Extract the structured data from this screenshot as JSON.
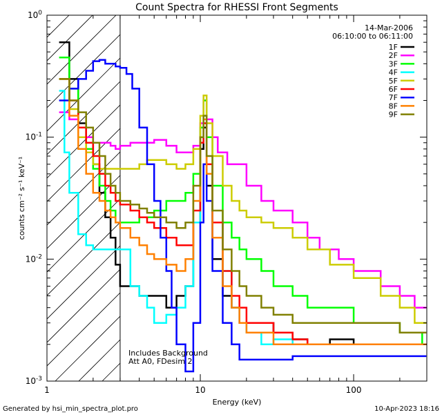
{
  "chart_data": {
    "type": "line",
    "title": "Count Spectra for RHESSI Front Segments",
    "xlabel": "Energy (keV)",
    "ylabel": "counts cm⁻² s⁻¹ keV⁻¹",
    "xscale": "log",
    "yscale": "log",
    "xlim": [
      1,
      300
    ],
    "ylim": [
      0.001,
      1
    ],
    "x_ticks": [
      {
        "value": 1,
        "label": "1"
      },
      {
        "value": 10,
        "label": "10"
      },
      {
        "value": 100,
        "label": "100"
      }
    ],
    "y_ticks": [
      {
        "value": 1,
        "base": "10",
        "exp": "0"
      },
      {
        "value": 0.1,
        "base": "10",
        "exp": "-1"
      },
      {
        "value": 0.01,
        "base": "10",
        "exp": "-2"
      },
      {
        "value": 0.001,
        "base": "10",
        "exp": "-3"
      }
    ],
    "date": "14-Mar-2006",
    "time_range": "06:10:00 to 06:11:00",
    "shaded_region": {
      "from_keV": 1,
      "to_keV": 3
    },
    "annotations": [
      "Includes Background",
      "Att A0, FDesim 2"
    ],
    "legend_position": "top-right",
    "series": [
      {
        "name": "1F",
        "color": "#000000",
        "x": [
          1.2,
          1.4,
          1.6,
          1.8,
          2.0,
          2.2,
          2.4,
          2.6,
          2.8,
          3.0,
          4,
          5,
          6,
          7,
          8,
          9,
          10,
          10.5,
          11,
          12,
          14,
          16,
          18,
          20,
          25,
          30,
          40,
          50,
          70,
          100,
          150,
          200,
          280
        ],
        "y": [
          0.6,
          0.3,
          0.13,
          0.09,
          0.06,
          0.035,
          0.022,
          0.015,
          0.009,
          0.006,
          0.005,
          0.005,
          0.004,
          0.005,
          0.006,
          0.02,
          0.08,
          0.12,
          0.04,
          0.01,
          0.005,
          0.004,
          0.003,
          0.003,
          0.003,
          0.0025,
          0.0022,
          0.002,
          0.0022,
          0.002,
          0.002,
          0.002,
          0.002
        ]
      },
      {
        "name": "2F",
        "color": "#ff00ff",
        "x": [
          1.2,
          1.4,
          1.6,
          1.8,
          2.0,
          2.2,
          2.4,
          2.6,
          2.8,
          3.0,
          3.5,
          4,
          5,
          6,
          7,
          8,
          9,
          10,
          10.5,
          11,
          12,
          13,
          15,
          20,
          25,
          30,
          40,
          50,
          60,
          70,
          80,
          100,
          150,
          200,
          250,
          280
        ],
        "y": [
          0.16,
          0.14,
          0.12,
          0.1,
          0.09,
          0.09,
          0.09,
          0.085,
          0.08,
          0.085,
          0.09,
          0.09,
          0.095,
          0.085,
          0.075,
          0.075,
          0.085,
          0.13,
          0.2,
          0.14,
          0.1,
          0.075,
          0.06,
          0.04,
          0.03,
          0.025,
          0.02,
          0.015,
          0.012,
          0.012,
          0.01,
          0.008,
          0.006,
          0.005,
          0.004,
          0.004
        ]
      },
      {
        "name": "3F",
        "color": "#00ff00",
        "x": [
          1.2,
          1.4,
          1.6,
          1.8,
          2.0,
          2.2,
          2.4,
          2.6,
          2.8,
          3.0,
          4,
          5,
          6,
          7,
          8,
          9,
          10,
          10.5,
          11,
          12,
          14,
          16,
          18,
          20,
          25,
          30,
          40,
          50,
          70,
          100,
          150,
          200,
          280
        ],
        "y": [
          0.45,
          0.25,
          0.12,
          0.08,
          0.055,
          0.04,
          0.03,
          0.025,
          0.02,
          0.02,
          0.022,
          0.025,
          0.03,
          0.03,
          0.035,
          0.05,
          0.12,
          0.2,
          0.1,
          0.04,
          0.02,
          0.015,
          0.012,
          0.01,
          0.008,
          0.006,
          0.005,
          0.004,
          0.004,
          0.003,
          0.003,
          0.0025,
          0.002
        ]
      },
      {
        "name": "4F",
        "color": "#00ffff",
        "x": [
          1.2,
          1.3,
          1.4,
          1.6,
          1.8,
          2.0,
          2.2,
          2.4,
          2.6,
          2.8,
          3.0,
          3.5,
          4,
          4.5,
          5,
          6,
          7,
          8,
          9,
          10,
          10.5,
          11,
          12,
          14,
          16,
          18,
          20,
          25,
          30,
          40,
          50,
          70,
          100,
          150,
          200,
          280
        ],
        "y": [
          0.24,
          0.075,
          0.035,
          0.016,
          0.013,
          0.012,
          0.012,
          0.012,
          0.012,
          0.012,
          0.012,
          0.006,
          0.005,
          0.004,
          0.003,
          0.0035,
          0.004,
          0.006,
          0.02,
          0.09,
          0.15,
          0.05,
          0.02,
          0.008,
          0.004,
          0.003,
          0.0025,
          0.002,
          0.0022,
          0.002,
          0.002,
          0.002,
          0.002,
          0.002,
          0.002,
          0.002
        ]
      },
      {
        "name": "5F",
        "color": "#cccc00",
        "x": [
          1.2,
          1.4,
          1.6,
          1.8,
          2.0,
          2.2,
          2.4,
          2.6,
          2.8,
          3.0,
          3.5,
          4,
          4.5,
          5,
          6,
          7,
          8,
          9,
          10,
          10.5,
          11,
          12,
          14,
          16,
          18,
          20,
          25,
          30,
          40,
          50,
          70,
          100,
          150,
          200,
          250,
          280
        ],
        "y": [
          0.3,
          0.17,
          0.1,
          0.075,
          0.06,
          0.055,
          0.055,
          0.055,
          0.055,
          0.055,
          0.055,
          0.06,
          0.065,
          0.065,
          0.06,
          0.055,
          0.06,
          0.08,
          0.15,
          0.22,
          0.13,
          0.07,
          0.04,
          0.03,
          0.025,
          0.022,
          0.02,
          0.018,
          0.015,
          0.012,
          0.009,
          0.007,
          0.005,
          0.004,
          0.003,
          0.003
        ]
      },
      {
        "name": "6F",
        "color": "#ff0000",
        "x": [
          1.2,
          1.4,
          1.6,
          1.8,
          2.0,
          2.2,
          2.4,
          2.6,
          2.8,
          3.0,
          3.5,
          4,
          4.5,
          5,
          6,
          7,
          8,
          9,
          10,
          10.5,
          11,
          12,
          14,
          16,
          18,
          20,
          25,
          30,
          40,
          50,
          70,
          100,
          150,
          200,
          280
        ],
        "y": [
          0.3,
          0.2,
          0.12,
          0.09,
          0.07,
          0.05,
          0.04,
          0.035,
          0.03,
          0.028,
          0.025,
          0.022,
          0.02,
          0.018,
          0.015,
          0.013,
          0.013,
          0.025,
          0.09,
          0.13,
          0.06,
          0.02,
          0.008,
          0.005,
          0.004,
          0.003,
          0.003,
          0.0025,
          0.0022,
          0.002,
          0.002,
          0.002,
          0.002,
          0.002,
          0.002
        ]
      },
      {
        "name": "7F",
        "color": "#0000ff",
        "x": [
          1.2,
          1.4,
          1.6,
          1.8,
          2.0,
          2.2,
          2.4,
          2.6,
          2.8,
          3.0,
          3.3,
          3.6,
          4,
          4.5,
          5,
          5.5,
          6,
          6.5,
          7,
          8,
          9,
          10,
          10.5,
          11,
          12,
          14,
          16,
          18,
          20,
          25,
          30,
          40,
          50,
          70,
          100,
          150,
          200,
          280
        ],
        "y": [
          0.2,
          0.25,
          0.3,
          0.35,
          0.42,
          0.43,
          0.4,
          0.4,
          0.38,
          0.37,
          0.33,
          0.25,
          0.12,
          0.06,
          0.03,
          0.015,
          0.008,
          0.004,
          0.002,
          0.0012,
          0.003,
          0.02,
          0.06,
          0.03,
          0.008,
          0.003,
          0.002,
          0.0015,
          0.0015,
          0.0015,
          0.0015,
          0.0016,
          0.0016,
          0.0016,
          0.0016,
          0.0016,
          0.0016,
          0.0016
        ]
      },
      {
        "name": "8F",
        "color": "#ff8000",
        "x": [
          1.2,
          1.4,
          1.6,
          1.8,
          2.0,
          2.2,
          2.4,
          2.6,
          2.8,
          3.0,
          3.5,
          4,
          4.5,
          5,
          6,
          7,
          8,
          9,
          10,
          10.5,
          11,
          12,
          14,
          16,
          18,
          20,
          25,
          30,
          40,
          50,
          70,
          100,
          150,
          200,
          280
        ],
        "y": [
          0.3,
          0.15,
          0.08,
          0.05,
          0.035,
          0.03,
          0.025,
          0.022,
          0.02,
          0.018,
          0.015,
          0.013,
          0.011,
          0.01,
          0.009,
          0.008,
          0.01,
          0.03,
          0.1,
          0.14,
          0.05,
          0.015,
          0.006,
          0.004,
          0.003,
          0.0025,
          0.0025,
          0.002,
          0.002,
          0.002,
          0.002,
          0.002,
          0.002,
          0.002,
          0.002
        ]
      },
      {
        "name": "9F",
        "color": "#808000",
        "x": [
          1.2,
          1.4,
          1.6,
          1.8,
          2.0,
          2.2,
          2.4,
          2.6,
          2.8,
          3.0,
          3.5,
          4,
          4.5,
          5,
          6,
          7,
          8,
          9,
          10,
          10.5,
          11,
          12,
          14,
          16,
          18,
          20,
          25,
          30,
          40,
          50,
          70,
          100,
          150,
          200,
          280
        ],
        "y": [
          0.3,
          0.2,
          0.16,
          0.12,
          0.09,
          0.07,
          0.05,
          0.04,
          0.035,
          0.03,
          0.028,
          0.026,
          0.024,
          0.022,
          0.02,
          0.018,
          0.02,
          0.04,
          0.1,
          0.15,
          0.07,
          0.025,
          0.012,
          0.008,
          0.006,
          0.005,
          0.004,
          0.0035,
          0.003,
          0.003,
          0.003,
          0.003,
          0.003,
          0.0025,
          0.0025
        ]
      }
    ]
  },
  "footer": {
    "generated_by": "Generated by hsi_min_spectra_plot.pro",
    "timestamp": "10-Apr-2023 18:16"
  }
}
